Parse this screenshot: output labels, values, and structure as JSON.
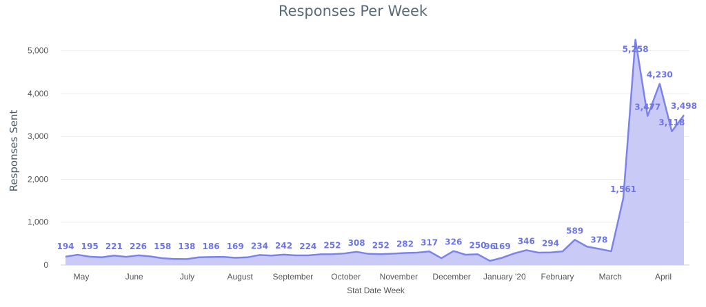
{
  "chart_data": {
    "type": "area",
    "title": "Responses Per Week",
    "xlabel": "Stat Date Week",
    "ylabel": "Responses Sent",
    "ylim": [
      0,
      5300
    ],
    "yticks": [
      {
        "value": 0,
        "label": "0"
      },
      {
        "value": 1000,
        "label": "1,000"
      },
      {
        "value": 2000,
        "label": "2,000"
      },
      {
        "value": 3000,
        "label": "3,000"
      },
      {
        "value": 4000,
        "label": "4,000"
      },
      {
        "value": 5000,
        "label": "5,000"
      }
    ],
    "xticks": [
      "May",
      "June",
      "July",
      "August",
      "September",
      "October",
      "November",
      "December",
      "January '20",
      "February",
      "March",
      "April"
    ],
    "grid": true,
    "color": "#7b83eb",
    "fill_color": "#c9cbf6",
    "series": [
      {
        "values": [
          194,
          240,
          195,
          180,
          221,
          190,
          226,
          200,
          158,
          140,
          138,
          180,
          186,
          190,
          169,
          180,
          234,
          220,
          242,
          225,
          224,
          250,
          252,
          270,
          308,
          260,
          252,
          265,
          282,
          290,
          317,
          160,
          326,
          240,
          250,
          96,
          169,
          270,
          346,
          290,
          294,
          320,
          589,
          430,
          378,
          320,
          1561,
          5258,
          3477,
          4230,
          3118,
          3498
        ],
        "data_labels": [
          "194",
          "",
          "195",
          "",
          "221",
          "",
          "226",
          "",
          "158",
          "",
          "138",
          "",
          "186",
          "",
          "169",
          "",
          "234",
          "",
          "242",
          "",
          "224",
          "",
          "252",
          "",
          "308",
          "",
          "252",
          "",
          "282",
          "",
          "317",
          "",
          "326",
          "",
          "250",
          "96",
          "169",
          "",
          "346",
          "",
          "294",
          "",
          "589",
          "",
          "378",
          "",
          "1,561",
          "5,258",
          "3,477",
          "4,230",
          "3,118",
          "3,498"
        ]
      }
    ]
  }
}
